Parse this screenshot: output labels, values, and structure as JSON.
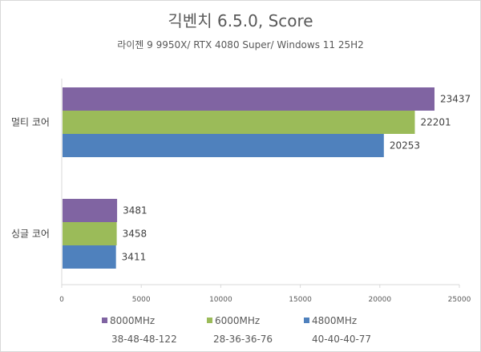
{
  "chart_data": {
    "type": "bar",
    "orientation": "horizontal",
    "title": "긱벤치 6.5.0, Score",
    "subtitle": "라이젠 9 9950X/ RTX 4080 Super/ Windows 11 25H2",
    "categories": [
      "멀티 코어",
      "싱글 코어"
    ],
    "series": [
      {
        "name": "8000MHz",
        "timing": "38-48-48-122",
        "color": "#8064a2",
        "values": [
          23437,
          3481
        ]
      },
      {
        "name": "6000MHz",
        "timing": "28-36-36-76",
        "color": "#9bbb59",
        "values": [
          22201,
          3458
        ]
      },
      {
        "name": "4800MHz",
        "timing": "40-40-40-77",
        "color": "#4f81bd",
        "values": [
          20253,
          3411
        ]
      }
    ],
    "xlim": [
      0,
      25000
    ],
    "xticks": [
      "0",
      "5000",
      "10000",
      "15000",
      "20000",
      "25000"
    ],
    "grid": false,
    "legend_position": "bottom"
  }
}
